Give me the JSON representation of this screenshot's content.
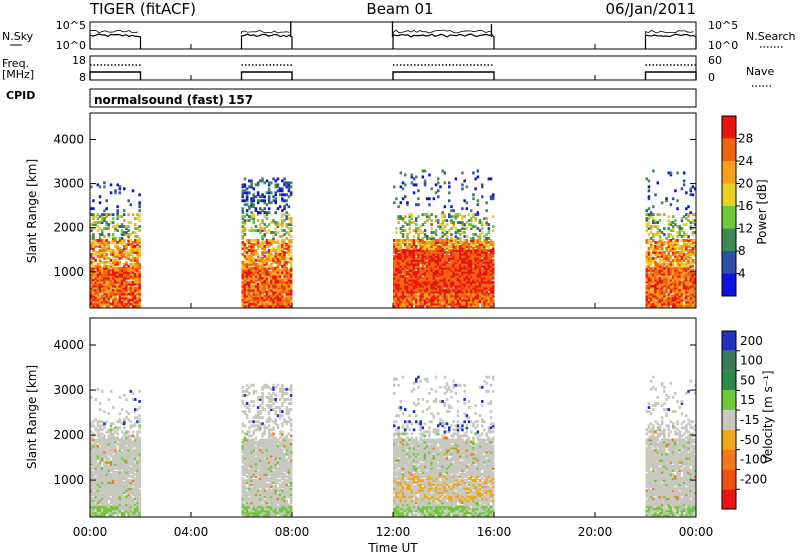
{
  "header": {
    "title": "TIGER (fitACF)",
    "beam": "Beam 01",
    "date": "06/Jan/2011"
  },
  "panel_labels": {
    "nsky": "N.Sky",
    "freq_line1": "Freq.",
    "freq_line2": "[MHz]",
    "cpid": "CPID",
    "nsearch": "N.Search",
    "nave": "Nave",
    "cpid_text": "normalsound (fast) 157"
  },
  "time_axis": {
    "title": "Time UT",
    "ticks": [
      "00:00",
      "04:00",
      "08:00",
      "12:00",
      "16:00",
      "20:00",
      "00:00"
    ],
    "tick_hours": [
      0,
      4,
      8,
      12,
      16,
      20,
      24
    ]
  },
  "chart_data": [
    {
      "type": "line",
      "title": "N.Sky / N.Search",
      "y_ticks_left": [
        "10^5",
        "10^0"
      ],
      "y_ticks_right": [
        "10^5",
        "10^0"
      ],
      "observation_windows_ut_hours": [
        [
          0,
          2
        ],
        [
          6,
          8
        ],
        [
          12,
          16
        ],
        [
          22,
          24
        ]
      ]
    },
    {
      "type": "line",
      "title": "Freq. [MHz] / Nave",
      "y_ticks_left": [
        "18",
        "8"
      ],
      "y_ticks_right": [
        "60",
        "0"
      ],
      "observation_windows_ut_hours": [
        [
          0,
          2
        ],
        [
          6,
          8
        ],
        [
          12,
          16
        ],
        [
          22,
          24
        ]
      ]
    },
    {
      "type": "heatmap",
      "ylabel": "Slant Range [km]",
      "y_ticks": [
        "1000",
        "2000",
        "3000",
        "4000"
      ],
      "y_tick_values": [
        1000,
        2000,
        3000,
        4000
      ],
      "ylim": [
        180,
        4600
      ],
      "xlim": [
        0,
        24
      ],
      "colorbar": {
        "label": "Power [dB]",
        "ticks": [
          "4",
          "8",
          "12",
          "16",
          "20",
          "24",
          "28"
        ],
        "colors": [
          "#1010e0",
          "#3050a8",
          "#3c8a55",
          "#6ec83a",
          "#e8d020",
          "#f5a018",
          "#f06410",
          "#e81410"
        ]
      },
      "windows": [
        {
          "start": 0,
          "end": 2,
          "top_km": 3000
        },
        {
          "start": 6,
          "end": 8,
          "top_km": 3100
        },
        {
          "start": 12,
          "end": 16,
          "top_km": 3300
        },
        {
          "start": 22,
          "end": 24,
          "top_km": 3300
        }
      ]
    },
    {
      "type": "heatmap",
      "ylabel": "Slant Range [km]",
      "y_ticks": [
        "1000",
        "2000",
        "3000",
        "4000"
      ],
      "y_tick_values": [
        1000,
        2000,
        3000,
        4000
      ],
      "ylim": [
        180,
        4600
      ],
      "xlim": [
        0,
        24
      ],
      "colorbar": {
        "label": "Velocity [m s⁻¹]",
        "ticks": [
          "200",
          "100",
          "50",
          "15",
          "-15",
          "-50",
          "-100",
          "-200"
        ],
        "colors": [
          "#2030c0",
          "#3a7a5a",
          "#2e8a48",
          "#6ec83a",
          "#c8c8c0",
          "#f0a818",
          "#f07a18",
          "#f05010",
          "#e81810"
        ]
      },
      "windows": [
        {
          "start": 0,
          "end": 2,
          "top_km": 3000
        },
        {
          "start": 6,
          "end": 8,
          "top_km": 3100
        },
        {
          "start": 12,
          "end": 16,
          "top_km": 3300
        },
        {
          "start": 22,
          "end": 24,
          "top_km": 3300
        }
      ]
    }
  ]
}
